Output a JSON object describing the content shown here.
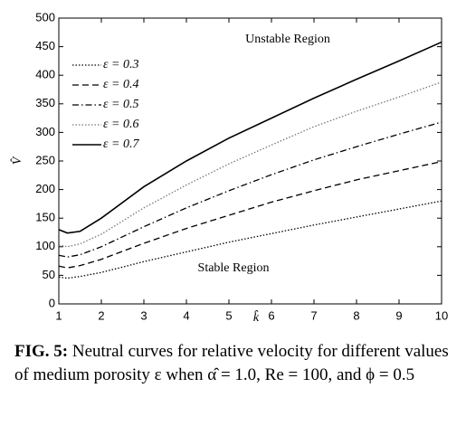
{
  "chart_data": {
    "type": "line",
    "x_label": "k̂",
    "y_label": "V̂",
    "annotations": [
      "Unstable Region",
      "Stable Region"
    ],
    "x": [
      1,
      1.2,
      1.5,
      2,
      3,
      4,
      5,
      6,
      7,
      8,
      9,
      10
    ],
    "series": [
      {
        "name": "ε = 0.3",
        "color": "#000000",
        "style": "dotted",
        "values": [
          47,
          45,
          48,
          55,
          74,
          91,
          108,
          123,
          138,
          152,
          166,
          180
        ]
      },
      {
        "name": "ε = 0.4",
        "color": "#000000",
        "style": "dashed",
        "values": [
          66,
          63,
          67,
          78,
          106,
          132,
          155,
          178,
          198,
          217,
          233,
          249
        ]
      },
      {
        "name": "ε = 0.5",
        "color": "#000000",
        "style": "dashdot",
        "values": [
          85,
          82,
          86,
          100,
          135,
          168,
          198,
          226,
          252,
          275,
          297,
          318
        ]
      },
      {
        "name": "ε = 0.6",
        "color": "#777777",
        "style": "dotted",
        "values": [
          103,
          100,
          105,
          122,
          168,
          208,
          245,
          278,
          310,
          337,
          362,
          388
        ]
      },
      {
        "name": "ε = 0.7",
        "color": "#000000",
        "style": "solid",
        "values": [
          130,
          124,
          127,
          150,
          205,
          250,
          290,
          325,
          360,
          393,
          425,
          458
        ]
      }
    ],
    "xlim": [
      1,
      10
    ],
    "xticks": [
      1,
      2,
      3,
      4,
      5,
      6,
      7,
      8,
      9,
      10
    ],
    "ylim": [
      0,
      500
    ],
    "yticks": [
      0,
      50,
      100,
      150,
      200,
      250,
      300,
      350,
      400,
      450,
      500
    ],
    "grid": false,
    "legend": "upper left"
  },
  "caption_label": "FIG. 5:",
  "caption": "Neutral curves for relative velocity for different values of medium porosity ε when α̂ = 1.0, Re = 100, and ϕ = 0.5"
}
